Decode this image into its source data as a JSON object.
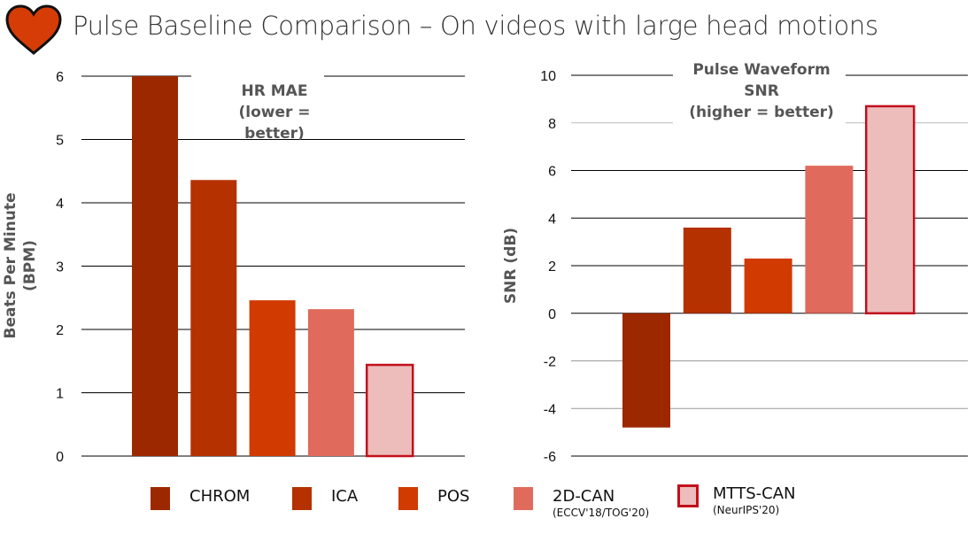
{
  "title": "Pulse Baseline Comparison – On videos with large head motions",
  "icon": "heart-icon",
  "colors": {
    "CHROM": "#9c2800",
    "ICA": "#b53100",
    "POS": "#d13a00",
    "2D-CAN": "#e06a5c",
    "MTTS-CAN": "#ecbdbb",
    "highlight_border": "#c20f1c",
    "heart": "#d63c06"
  },
  "legend": [
    {
      "label": "CHROM",
      "sub": ""
    },
    {
      "label": "ICA",
      "sub": ""
    },
    {
      "label": "POS",
      "sub": ""
    },
    {
      "label": "2D-CAN",
      "sub": "(ECCV'18/TOG'20)"
    },
    {
      "label": "MTTS-CAN",
      "sub": "(NeurIPS'20)"
    }
  ],
  "chart_data": [
    {
      "type": "bar",
      "title_lines": [
        "HR MAE",
        "(lower =",
        "better)"
      ],
      "ylabel_lines": [
        "Beats Per Minute",
        "(BPM)"
      ],
      "categories": [
        "CHROM",
        "ICA",
        "POS",
        "2D-CAN",
        "MTTS-CAN"
      ],
      "values": [
        6.0,
        4.36,
        2.46,
        2.32,
        1.44
      ],
      "ylim": [
        0,
        6
      ],
      "yticks": [
        "0",
        "1",
        "2",
        "3",
        "4",
        "5",
        "6"
      ],
      "grid": true
    },
    {
      "type": "bar",
      "title_lines": [
        "Pulse Waveform",
        "SNR",
        "(higher = better)"
      ],
      "ylabel_lines": [
        "SNR (dB)"
      ],
      "categories": [
        "CHROM",
        "ICA",
        "POS",
        "2D-CAN",
        "MTTS-CAN"
      ],
      "values": [
        -4.8,
        3.6,
        2.3,
        6.2,
        8.7
      ],
      "ylim": [
        -6,
        10
      ],
      "yticks": [
        "-6",
        "-4",
        "-2",
        "0",
        "2",
        "4",
        "6",
        "8",
        "10"
      ],
      "grid": true
    }
  ]
}
